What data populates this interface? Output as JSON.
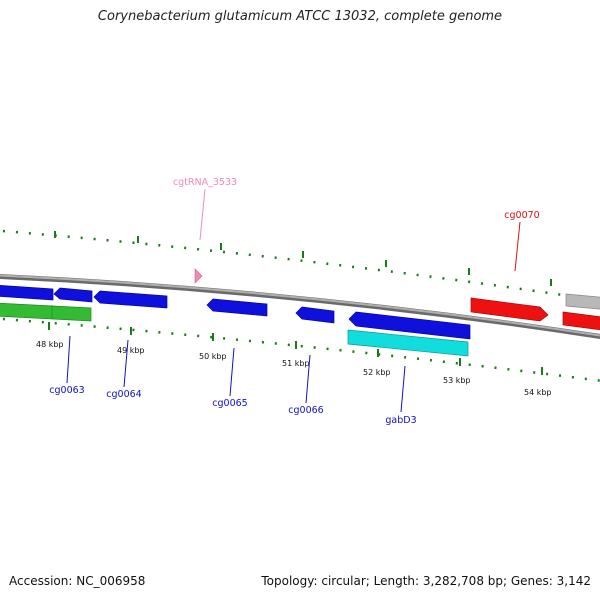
{
  "title": "Corynebacterium glutamicum ATCC 13032, complete genome",
  "footer": {
    "accession": "Accession: NC_006958",
    "summary": "Topology: circular; Length: 3,282,708 bp; Genes: 3,142"
  },
  "colors": {
    "backbone": "#8a8a8a",
    "tick": "#1a7a1a",
    "tick_label": "#111111",
    "cds_blue": "#1010dd",
    "cds_green": "#33bb33",
    "cds_cyan": "#11dddd",
    "cds_red": "#ee1111",
    "cds_gray": "#b8b8b8",
    "trna_pink": "#f28ab8"
  },
  "scale_labels": [
    "48 kbp",
    "49 kbp",
    "50 kbp",
    "51 kbp",
    "52 kbp",
    "53 kbp",
    "54 kbp"
  ],
  "gene_labels": [
    {
      "name": "cgtRNA_3533",
      "color": "#f28ab8"
    },
    {
      "name": "cg0070",
      "color": "#dd1111"
    },
    {
      "name": "cg0063",
      "color": "#1010cc"
    },
    {
      "name": "cg0064",
      "color": "#1010cc"
    },
    {
      "name": "cg0065",
      "color": "#1010cc"
    },
    {
      "name": "cg0066",
      "color": "#1010cc"
    },
    {
      "name": "gabD3",
      "color": "#1010cc"
    }
  ]
}
